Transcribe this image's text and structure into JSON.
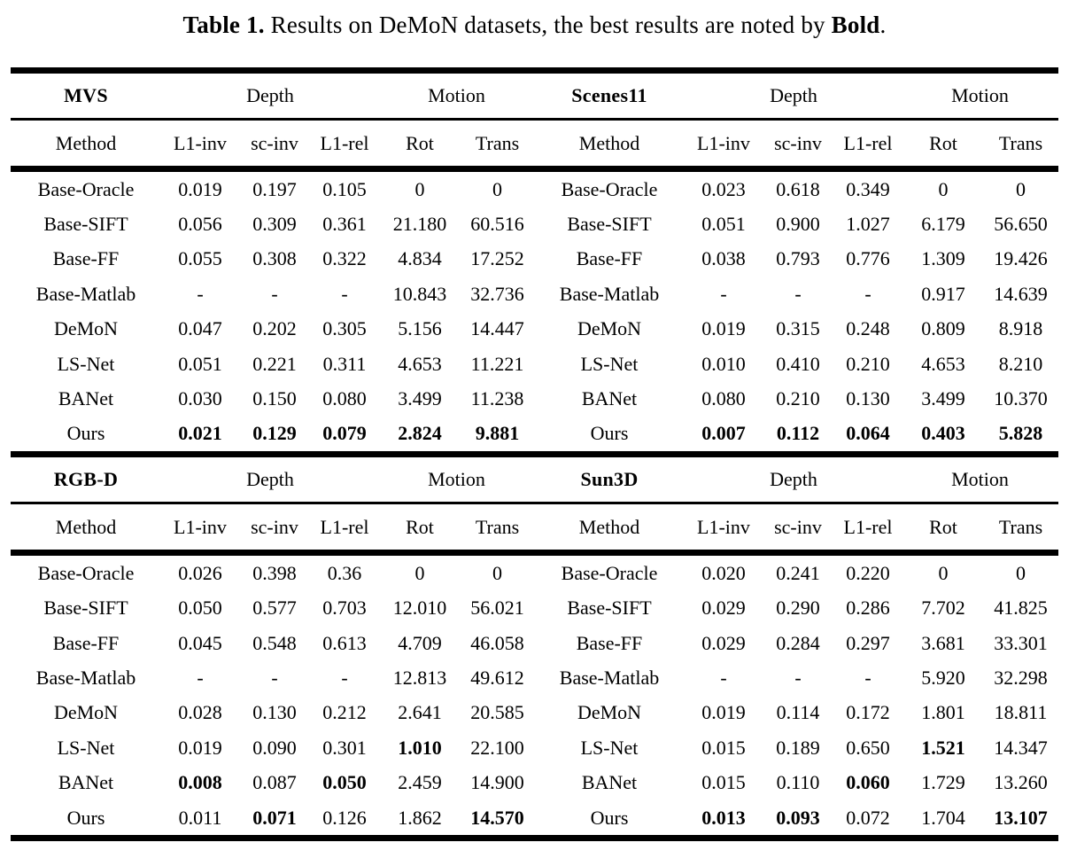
{
  "caption": {
    "label": "Table 1.",
    "text": " Results on DeMoN datasets, the best results are noted by ",
    "bold_word": "Bold",
    "suffix": "."
  },
  "labels": {
    "depth": "Depth",
    "motion": "Motion"
  },
  "columns": [
    "Method",
    "L1-inv",
    "sc-inv",
    "L1-rel",
    "Rot",
    "Trans"
  ],
  "colors": {
    "text": "#000000",
    "background": "#ffffff",
    "rule": "#000000"
  },
  "sections": [
    {
      "left": {
        "dataset": "MVS",
        "rows": [
          {
            "method": "Base-Oracle",
            "values": [
              "0.019",
              "0.197",
              "0.105",
              "0",
              "0"
            ],
            "bold": [
              false,
              false,
              false,
              false,
              false
            ]
          },
          {
            "method": "Base-SIFT",
            "values": [
              "0.056",
              "0.309",
              "0.361",
              "21.180",
              "60.516"
            ],
            "bold": [
              false,
              false,
              false,
              false,
              false
            ]
          },
          {
            "method": "Base-FF",
            "values": [
              "0.055",
              "0.308",
              "0.322",
              "4.834",
              "17.252"
            ],
            "bold": [
              false,
              false,
              false,
              false,
              false
            ]
          },
          {
            "method": "Base-Matlab",
            "values": [
              "-",
              "-",
              "-",
              "10.843",
              "32.736"
            ],
            "bold": [
              false,
              false,
              false,
              false,
              false
            ]
          },
          {
            "method": "DeMoN",
            "values": [
              "0.047",
              "0.202",
              "0.305",
              "5.156",
              "14.447"
            ],
            "bold": [
              false,
              false,
              false,
              false,
              false
            ]
          },
          {
            "method": "LS-Net",
            "values": [
              "0.051",
              "0.221",
              "0.311",
              "4.653",
              "11.221"
            ],
            "bold": [
              false,
              false,
              false,
              false,
              false
            ]
          },
          {
            "method": "BANet",
            "values": [
              "0.030",
              "0.150",
              "0.080",
              "3.499",
              "11.238"
            ],
            "bold": [
              false,
              false,
              false,
              false,
              false
            ]
          },
          {
            "method": "Ours",
            "values": [
              "0.021",
              "0.129",
              "0.079",
              "2.824",
              "9.881"
            ],
            "bold": [
              true,
              true,
              true,
              true,
              true
            ]
          }
        ]
      },
      "right": {
        "dataset": "Scenes11",
        "rows": [
          {
            "method": "Base-Oracle",
            "values": [
              "0.023",
              "0.618",
              "0.349",
              "0",
              "0"
            ],
            "bold": [
              false,
              false,
              false,
              false,
              false
            ]
          },
          {
            "method": "Base-SIFT",
            "values": [
              "0.051",
              "0.900",
              "1.027",
              "6.179",
              "56.650"
            ],
            "bold": [
              false,
              false,
              false,
              false,
              false
            ]
          },
          {
            "method": "Base-FF",
            "values": [
              "0.038",
              "0.793",
              "0.776",
              "1.309",
              "19.426"
            ],
            "bold": [
              false,
              false,
              false,
              false,
              false
            ]
          },
          {
            "method": "Base-Matlab",
            "values": [
              "-",
              "-",
              "-",
              "0.917",
              "14.639"
            ],
            "bold": [
              false,
              false,
              false,
              false,
              false
            ]
          },
          {
            "method": "DeMoN",
            "values": [
              "0.019",
              "0.315",
              "0.248",
              "0.809",
              "8.918"
            ],
            "bold": [
              false,
              false,
              false,
              false,
              false
            ]
          },
          {
            "method": "LS-Net",
            "values": [
              "0.010",
              "0.410",
              "0.210",
              "4.653",
              "8.210"
            ],
            "bold": [
              false,
              false,
              false,
              false,
              false
            ]
          },
          {
            "method": "BANet",
            "values": [
              "0.080",
              "0.210",
              "0.130",
              "3.499",
              "10.370"
            ],
            "bold": [
              false,
              false,
              false,
              false,
              false
            ]
          },
          {
            "method": "Ours",
            "values": [
              "0.007",
              "0.112",
              "0.064",
              "0.403",
              "5.828"
            ],
            "bold": [
              true,
              true,
              true,
              true,
              true
            ]
          }
        ]
      }
    },
    {
      "left": {
        "dataset": "RGB-D",
        "rows": [
          {
            "method": "Base-Oracle",
            "values": [
              "0.026",
              "0.398",
              "0.36",
              "0",
              "0"
            ],
            "bold": [
              false,
              false,
              false,
              false,
              false
            ]
          },
          {
            "method": "Base-SIFT",
            "values": [
              "0.050",
              "0.577",
              "0.703",
              "12.010",
              "56.021"
            ],
            "bold": [
              false,
              false,
              false,
              false,
              false
            ]
          },
          {
            "method": "Base-FF",
            "values": [
              "0.045",
              "0.548",
              "0.613",
              "4.709",
              "46.058"
            ],
            "bold": [
              false,
              false,
              false,
              false,
              false
            ]
          },
          {
            "method": "Base-Matlab",
            "values": [
              "-",
              "-",
              "-",
              "12.813",
              "49.612"
            ],
            "bold": [
              false,
              false,
              false,
              false,
              false
            ]
          },
          {
            "method": "DeMoN",
            "values": [
              "0.028",
              "0.130",
              "0.212",
              "2.641",
              "20.585"
            ],
            "bold": [
              false,
              false,
              false,
              false,
              false
            ]
          },
          {
            "method": "LS-Net",
            "values": [
              "0.019",
              "0.090",
              "0.301",
              "1.010",
              "22.100"
            ],
            "bold": [
              false,
              false,
              false,
              true,
              false
            ]
          },
          {
            "method": "BANet",
            "values": [
              "0.008",
              "0.087",
              "0.050",
              "2.459",
              "14.900"
            ],
            "bold": [
              true,
              false,
              true,
              false,
              false
            ]
          },
          {
            "method": "Ours",
            "values": [
              "0.011",
              "0.071",
              "0.126",
              "1.862",
              "14.570"
            ],
            "bold": [
              false,
              true,
              false,
              false,
              true
            ]
          }
        ]
      },
      "right": {
        "dataset": "Sun3D",
        "rows": [
          {
            "method": "Base-Oracle",
            "values": [
              "0.020",
              "0.241",
              "0.220",
              "0",
              "0"
            ],
            "bold": [
              false,
              false,
              false,
              false,
              false
            ]
          },
          {
            "method": "Base-SIFT",
            "values": [
              "0.029",
              "0.290",
              "0.286",
              "7.702",
              "41.825"
            ],
            "bold": [
              false,
              false,
              false,
              false,
              false
            ]
          },
          {
            "method": "Base-FF",
            "values": [
              "0.029",
              "0.284",
              "0.297",
              "3.681",
              "33.301"
            ],
            "bold": [
              false,
              false,
              false,
              false,
              false
            ]
          },
          {
            "method": "Base-Matlab",
            "values": [
              "-",
              "-",
              "-",
              "5.920",
              "32.298"
            ],
            "bold": [
              false,
              false,
              false,
              false,
              false
            ]
          },
          {
            "method": "DeMoN",
            "values": [
              "0.019",
              "0.114",
              "0.172",
              "1.801",
              "18.811"
            ],
            "bold": [
              false,
              false,
              false,
              false,
              false
            ]
          },
          {
            "method": "LS-Net",
            "values": [
              "0.015",
              "0.189",
              "0.650",
              "1.521",
              "14.347"
            ],
            "bold": [
              false,
              false,
              false,
              true,
              false
            ]
          },
          {
            "method": "BANet",
            "values": [
              "0.015",
              "0.110",
              "0.060",
              "1.729",
              "13.260"
            ],
            "bold": [
              false,
              false,
              true,
              false,
              false
            ]
          },
          {
            "method": "Ours",
            "values": [
              "0.013",
              "0.093",
              "0.072",
              "1.704",
              "13.107"
            ],
            "bold": [
              true,
              true,
              false,
              false,
              true
            ]
          }
        ]
      }
    }
  ]
}
